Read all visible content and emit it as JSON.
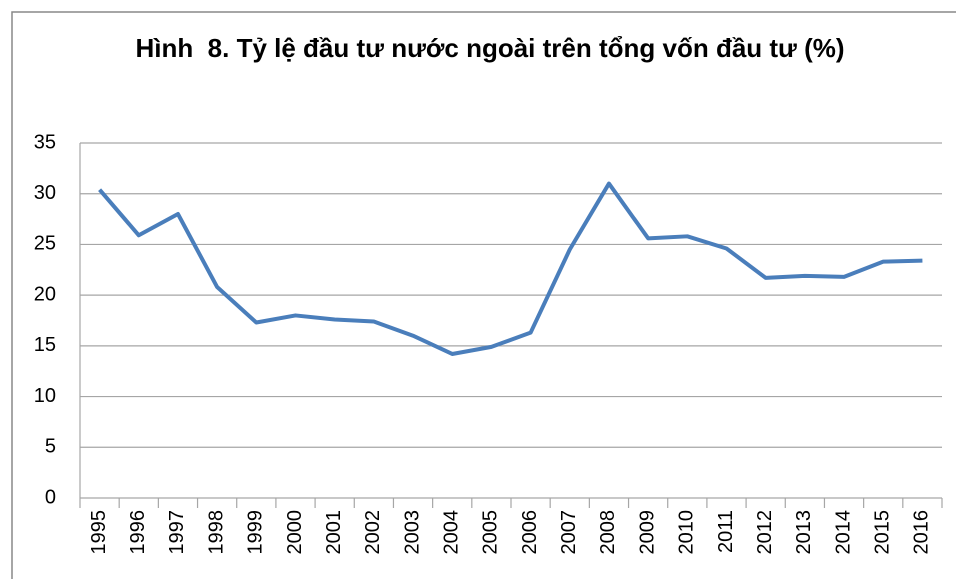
{
  "chart_data": {
    "type": "line",
    "title": "Hình  8. Tỷ lệ đầu tư nước ngoài trên tổng vốn đầu tư (%)",
    "categories": [
      "1995",
      "1996",
      "1997",
      "1998",
      "1999",
      "2000",
      "2001",
      "2002",
      "2003",
      "2004",
      "2005",
      "2006",
      "2007",
      "2008",
      "2009",
      "2010",
      "2011",
      "2012",
      "2013",
      "2014",
      "2015",
      "2016"
    ],
    "series": [
      {
        "name": null,
        "color": "#4a7ebb",
        "values": [
          30.4,
          25.9,
          28.0,
          20.8,
          17.3,
          18.0,
          17.6,
          17.4,
          16.0,
          14.2,
          14.9,
          16.3,
          24.5,
          31.0,
          25.6,
          25.8,
          24.6,
          21.7,
          21.9,
          21.8,
          23.3,
          23.4
        ]
      }
    ],
    "ylim": [
      0,
      35
    ],
    "yticks": [
      0,
      5,
      10,
      15,
      20,
      25,
      30,
      35
    ],
    "grid": true
  }
}
